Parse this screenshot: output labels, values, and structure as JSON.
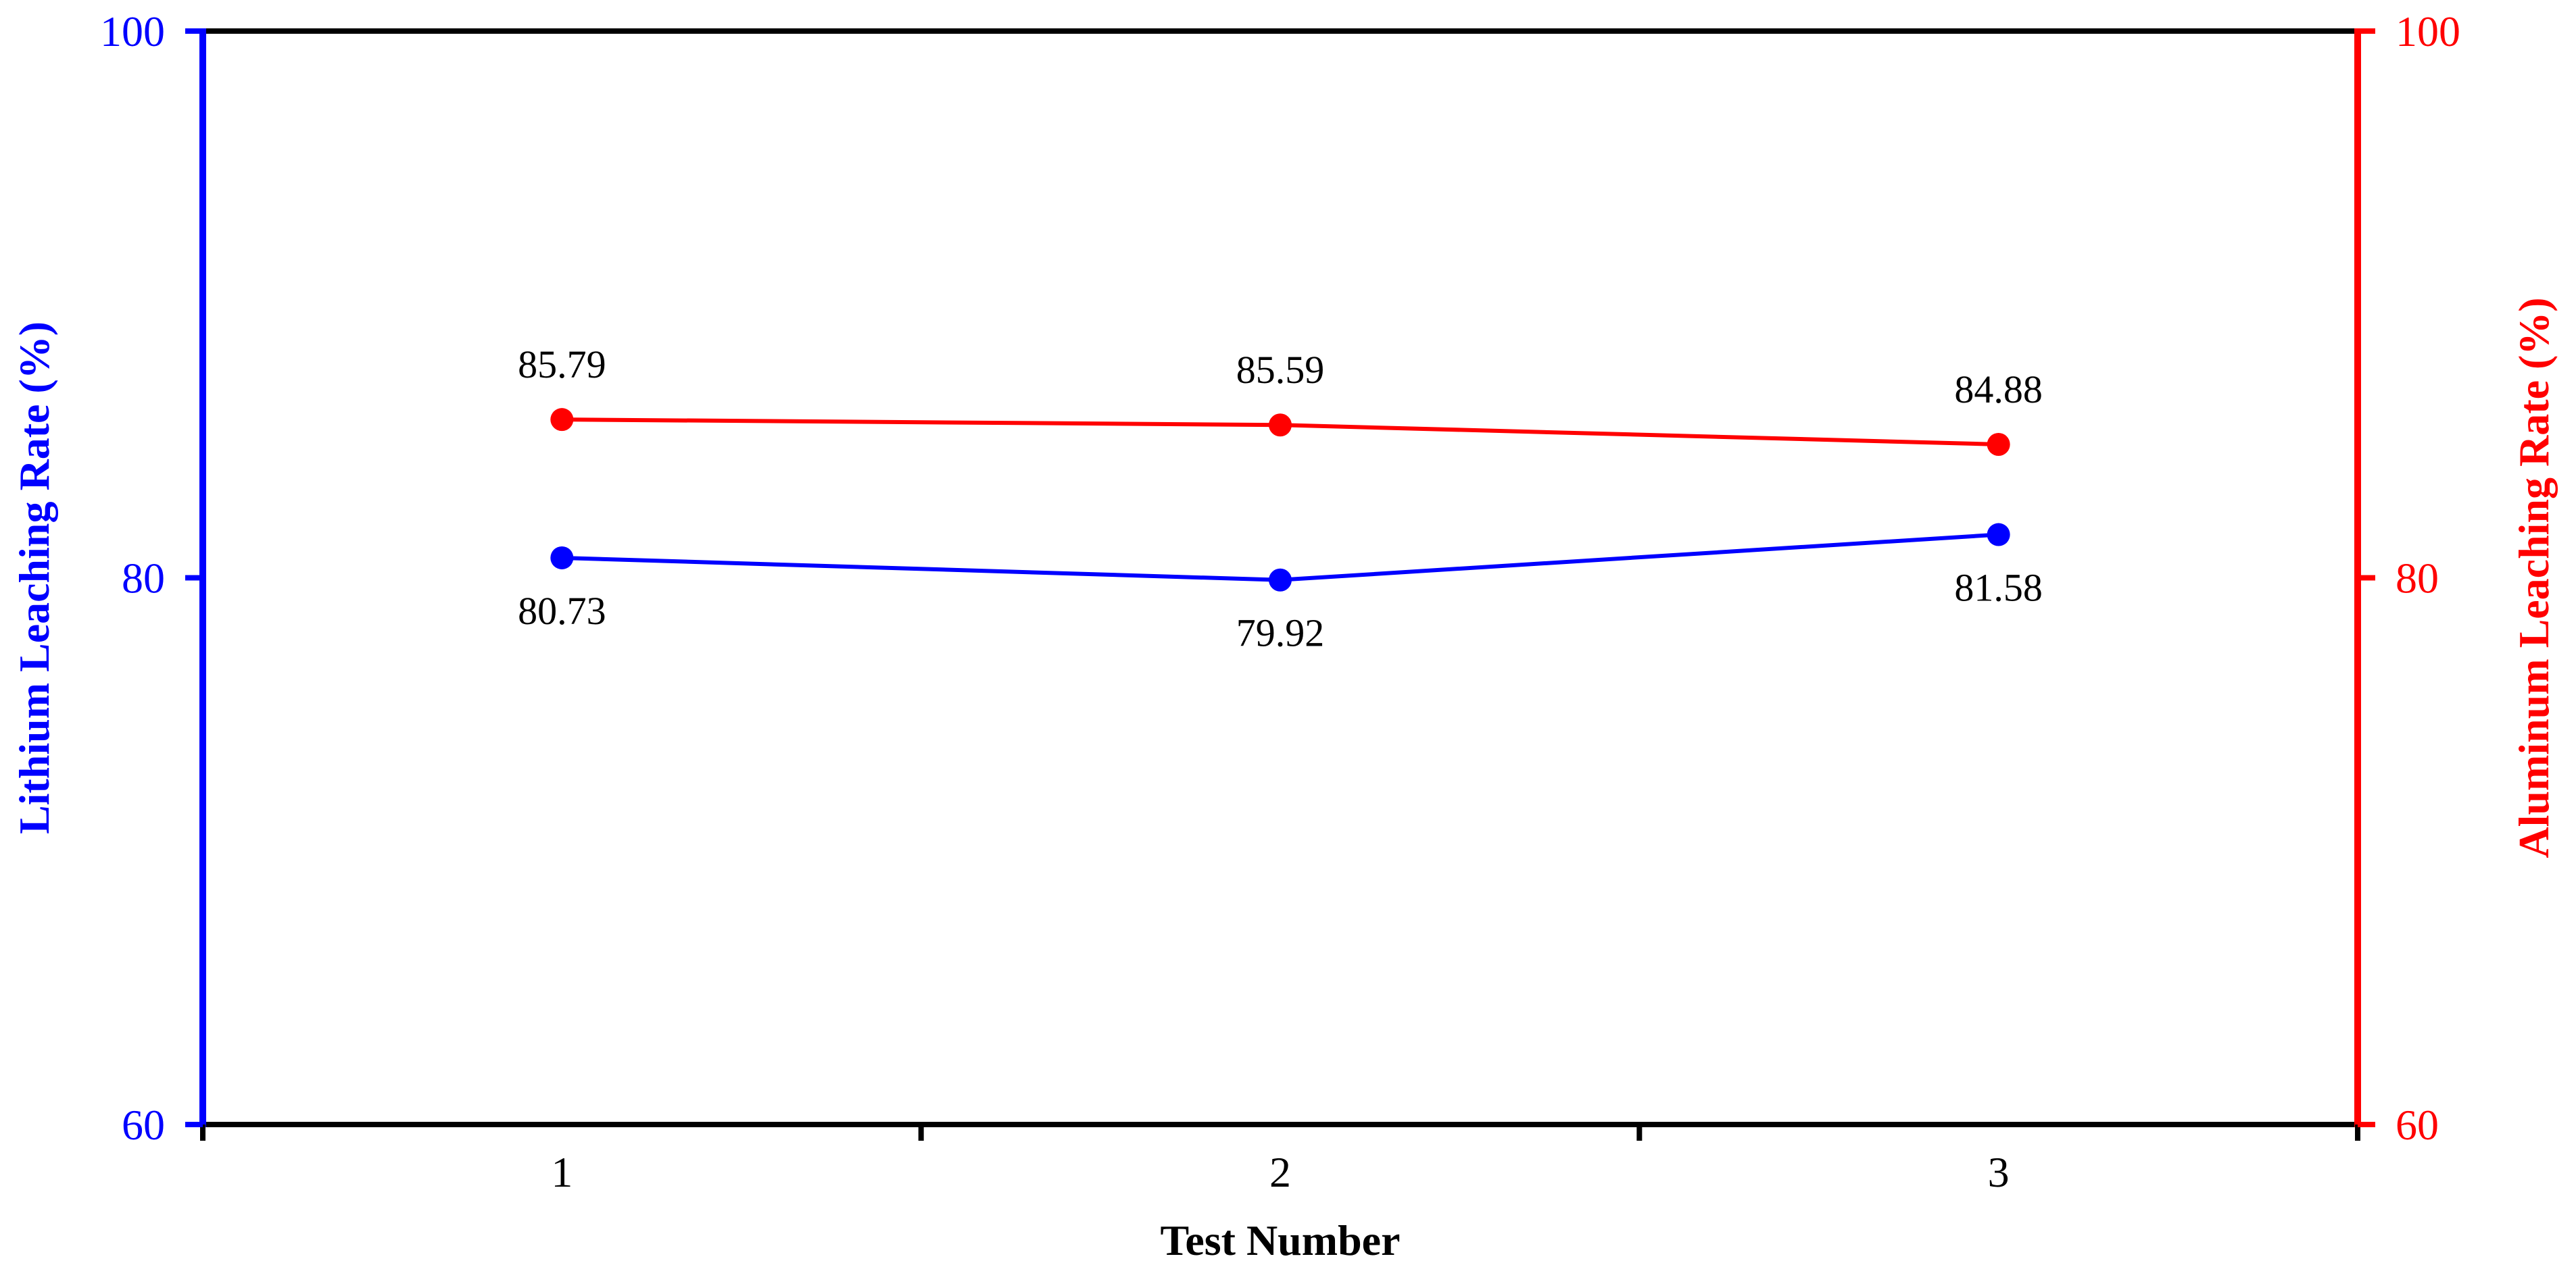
{
  "chart_data": {
    "type": "line",
    "categories": [
      "1",
      "2",
      "3"
    ],
    "x": [
      1,
      2,
      3
    ],
    "xlabel": "Test Number",
    "ylabel_left": "Lithium Leaching Rate (%)",
    "ylabel_right": "Aluminum Leaching Rate (%)",
    "ylim_left": [
      60,
      100
    ],
    "ylim_right": [
      60,
      100
    ],
    "yticks_left": [
      "60",
      "80",
      "100"
    ],
    "yticks_right": [
      "60",
      "80",
      "100"
    ],
    "grid": false,
    "series": [
      {
        "axis": "left",
        "color": "#0000ff",
        "values": [
          80.73,
          79.92,
          81.58
        ],
        "labels": [
          "80.73",
          "79.92",
          "81.58"
        ],
        "label_position": "below"
      },
      {
        "axis": "right",
        "color": "#ff0000",
        "values": [
          85.79,
          85.59,
          84.88
        ],
        "labels": [
          "85.79",
          "85.59",
          "84.88"
        ],
        "label_position": "above"
      }
    ]
  }
}
